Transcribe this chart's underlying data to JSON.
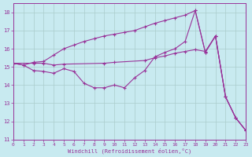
{
  "xlabel": "Windchill (Refroidissement éolien,°C)",
  "xlim": [
    0,
    23
  ],
  "ylim": [
    11,
    18.5
  ],
  "yticks": [
    11,
    12,
    13,
    14,
    15,
    16,
    17,
    18
  ],
  "xticks": [
    0,
    1,
    2,
    3,
    4,
    5,
    6,
    7,
    8,
    9,
    10,
    11,
    12,
    13,
    14,
    15,
    16,
    17,
    18,
    19,
    20,
    21,
    22,
    23
  ],
  "background_color": "#c8eaf0",
  "line_color": "#993399",
  "grid_color": "#aacccc",
  "line1": [
    [
      0,
      15.2
    ],
    [
      1,
      15.1
    ],
    [
      2,
      15.25
    ],
    [
      3,
      15.3
    ],
    [
      4,
      15.65
    ],
    [
      5,
      16.0
    ],
    [
      6,
      16.2
    ],
    [
      7,
      16.4
    ],
    [
      8,
      16.55
    ],
    [
      9,
      16.7
    ],
    [
      10,
      16.8
    ],
    [
      11,
      16.9
    ],
    [
      12,
      17.0
    ],
    [
      13,
      17.2
    ],
    [
      14,
      17.4
    ],
    [
      15,
      17.55
    ],
    [
      16,
      17.7
    ],
    [
      17,
      17.85
    ],
    [
      18,
      18.1
    ],
    [
      19,
      15.8
    ],
    [
      20,
      16.7
    ],
    [
      21,
      13.35
    ],
    [
      22,
      12.2
    ],
    [
      23,
      11.5
    ]
  ],
  "line2": [
    [
      0,
      15.2
    ],
    [
      2,
      15.2
    ],
    [
      3,
      15.2
    ],
    [
      4,
      15.1
    ],
    [
      5,
      15.15
    ],
    [
      9,
      15.2
    ],
    [
      10,
      15.25
    ],
    [
      13,
      15.35
    ],
    [
      14,
      15.5
    ],
    [
      15,
      15.6
    ],
    [
      16,
      15.75
    ],
    [
      17,
      15.85
    ],
    [
      18,
      15.95
    ],
    [
      19,
      15.85
    ],
    [
      20,
      16.7
    ],
    [
      21,
      13.35
    ],
    [
      22,
      12.2
    ],
    [
      23,
      11.5
    ]
  ],
  "line3": [
    [
      0,
      15.2
    ],
    [
      1,
      15.1
    ],
    [
      2,
      14.8
    ],
    [
      3,
      14.75
    ],
    [
      4,
      14.65
    ],
    [
      5,
      14.9
    ],
    [
      6,
      14.75
    ],
    [
      7,
      14.1
    ],
    [
      8,
      13.85
    ],
    [
      9,
      13.85
    ],
    [
      10,
      14.0
    ],
    [
      11,
      13.85
    ],
    [
      12,
      14.4
    ],
    [
      13,
      14.8
    ],
    [
      14,
      15.55
    ],
    [
      15,
      15.8
    ],
    [
      16,
      16.0
    ],
    [
      17,
      16.4
    ],
    [
      18,
      18.1
    ],
    [
      19,
      15.8
    ],
    [
      20,
      16.7
    ],
    [
      21,
      13.35
    ],
    [
      22,
      12.2
    ],
    [
      23,
      11.5
    ]
  ]
}
